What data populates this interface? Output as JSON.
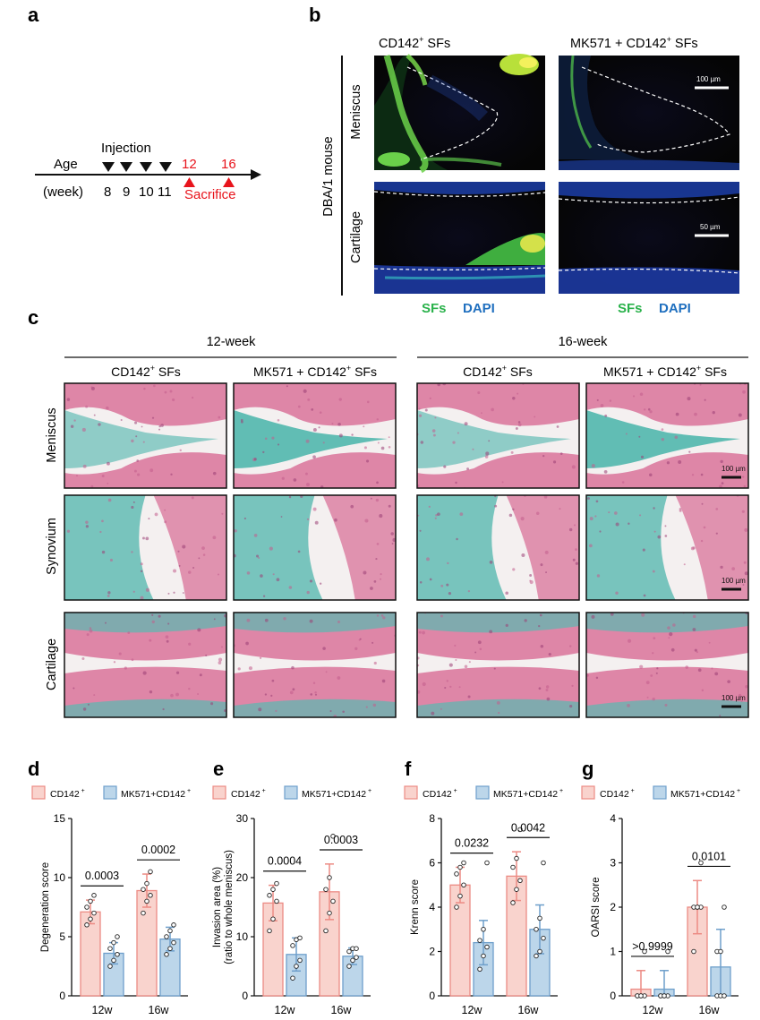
{
  "panel_letters": {
    "a": "a",
    "b": "b",
    "c": "c",
    "d": "d",
    "e": "e",
    "f": "f",
    "g": "g"
  },
  "panel_a": {
    "age_label": "Age",
    "week_label": "(week)",
    "injection_label": "Injection",
    "injection_weeks": [
      "8",
      "9",
      "10",
      "11"
    ],
    "sacrifice_weeks": [
      "12",
      "16"
    ],
    "sacrifice_label": "Sacrifice",
    "colors": {
      "injection": "#111111",
      "sacrifice": "#e8141c"
    }
  },
  "panel_b": {
    "mouse_label": "DBA/1 mouse",
    "columns": [
      {
        "prefix": "CD142",
        "sup": "+",
        "suffix": " SFs"
      },
      {
        "prefix": "MK571 + CD142",
        "sup": "+",
        "suffix": " SFs"
      }
    ],
    "rows": [
      "Meniscus",
      "Cartilage"
    ],
    "scalebars": [
      "100 µm",
      "50 µm"
    ],
    "legend": {
      "sfs": "SFs",
      "dapi": "DAPI"
    },
    "colors": {
      "sfs": "#2bb24c",
      "dapi": "#1f6fbf",
      "background": "#050505"
    }
  },
  "panel_c": {
    "groups": [
      "12-week",
      "16-week"
    ],
    "columns": [
      {
        "prefix": "CD142",
        "sup": "+",
        "suffix": " SFs"
      },
      {
        "prefix": "MK571 + CD142",
        "sup": "+",
        "suffix": " SFs"
      },
      {
        "prefix": "CD142",
        "sup": "+",
        "suffix": " SFs"
      },
      {
        "prefix": "MK571 + CD142",
        "sup": "+",
        "suffix": " SFs"
      }
    ],
    "rows": [
      "Meniscus",
      "Synovium",
      "Cartilage"
    ],
    "scalebar": "100 µm",
    "colors": {
      "tissue_pink": "#d9739a",
      "tissue_teal": "#59b9b0",
      "background": "#f4f0f0"
    }
  },
  "legend_labels": {
    "ctrl_prefix": "CD142",
    "ctrl_sup": "+",
    "mk_prefix": "MK571+CD142",
    "mk_sup": "+"
  },
  "chart_colors": {
    "ctrl_fill": "#f9d3cd",
    "ctrl_stroke": "#ec8b84",
    "mk_fill": "#bcd6ea",
    "mk_stroke": "#6e9fcb"
  },
  "chart_data": [
    {
      "type": "bar",
      "panel": "d",
      "categories": [
        "12w",
        "16w"
      ],
      "series": [
        {
          "name": "CD142 +",
          "values": [
            7.1,
            8.9
          ],
          "sd": [
            1.0,
            1.4
          ]
        },
        {
          "name": "MK571+CD142 +",
          "values": [
            3.6,
            4.8
          ],
          "sd": [
            0.9,
            1.0
          ]
        }
      ],
      "points": [
        [
          [
            6,
            6.5,
            7,
            7.5,
            8,
            8.5
          ],
          [
            2.5,
            3,
            3.5,
            4,
            4.5,
            5
          ]
        ],
        [
          [
            7,
            8,
            8.5,
            9,
            9.5,
            10.5
          ],
          [
            3.5,
            4,
            4.5,
            5,
            5.5,
            6
          ]
        ]
      ],
      "ylabel": "Degeneration score",
      "ylim": [
        0,
        15
      ],
      "yticks": [
        0,
        5,
        10,
        15
      ],
      "pvalues": [
        "0.0003",
        "0.0002"
      ]
    },
    {
      "type": "bar",
      "panel": "e",
      "categories": [
        "12w",
        "16w"
      ],
      "series": [
        {
          "name": "CD142 +",
          "values": [
            15.7,
            17.6
          ],
          "sd": [
            3.0,
            4.7
          ]
        },
        {
          "name": "MK571+CD142 +",
          "values": [
            7.0,
            6.7
          ],
          "sd": [
            2.8,
            1.4
          ]
        }
      ],
      "points": [
        [
          [
            11,
            13,
            16,
            17,
            18,
            19
          ],
          [
            3,
            5,
            6,
            8.5,
            9.5,
            9.8
          ]
        ],
        [
          [
            11,
            14,
            16,
            18,
            20,
            27
          ],
          [
            5,
            6,
            6.5,
            7.5,
            8,
            8
          ]
        ]
      ],
      "ylabel": "Invasion area (%)",
      "ylabel2": "(ratio to whole meniscus)",
      "ylim": [
        0,
        30
      ],
      "yticks": [
        0,
        10,
        20,
        30
      ],
      "pvalues": [
        "0.0004",
        "0.0003"
      ]
    },
    {
      "type": "bar",
      "panel": "f",
      "categories": [
        "12w",
        "16w"
      ],
      "series": [
        {
          "name": "CD142 +",
          "values": [
            5.0,
            5.4
          ],
          "sd": [
            0.8,
            1.1
          ]
        },
        {
          "name": "MK571+CD142 +",
          "values": [
            2.4,
            3.0
          ],
          "sd": [
            1.0,
            1.1
          ]
        }
      ],
      "points": [
        [
          [
            4,
            4.5,
            5,
            5.5,
            5.8,
            6
          ],
          [
            1.2,
            1.8,
            2.2,
            2.5,
            3,
            6
          ]
        ],
        [
          [
            4.2,
            4.8,
            5.2,
            5.8,
            6.2,
            7.5
          ],
          [
            1.8,
            2,
            2.6,
            3,
            3.5,
            6
          ]
        ]
      ],
      "ylabel": "Krenn score",
      "ylim": [
        0,
        8
      ],
      "yticks": [
        0,
        2,
        4,
        6,
        8
      ],
      "pvalues": [
        "0.0232",
        "0.0042"
      ]
    },
    {
      "type": "bar",
      "panel": "g",
      "categories": [
        "12w",
        "16w"
      ],
      "series": [
        {
          "name": "CD142 +",
          "values": [
            0.15,
            2.0
          ],
          "sd": [
            0.42,
            0.6
          ]
        },
        {
          "name": "MK571+CD142 +",
          "values": [
            0.15,
            0.65
          ],
          "sd": [
            0.42,
            0.85
          ]
        }
      ],
      "points": [
        [
          [
            0,
            0,
            0,
            0,
            0,
            1
          ],
          [
            0,
            0,
            0,
            0,
            0,
            1
          ]
        ],
        [
          [
            1,
            2,
            2,
            2,
            2,
            3
          ],
          [
            0,
            0,
            0,
            1,
            1,
            2
          ]
        ]
      ],
      "ylabel": "OARSI score",
      "ylim": [
        0,
        4
      ],
      "yticks": [
        0,
        1,
        2,
        3,
        4
      ],
      "pvalues": [
        ">0.9999",
        "0.0101"
      ]
    }
  ]
}
